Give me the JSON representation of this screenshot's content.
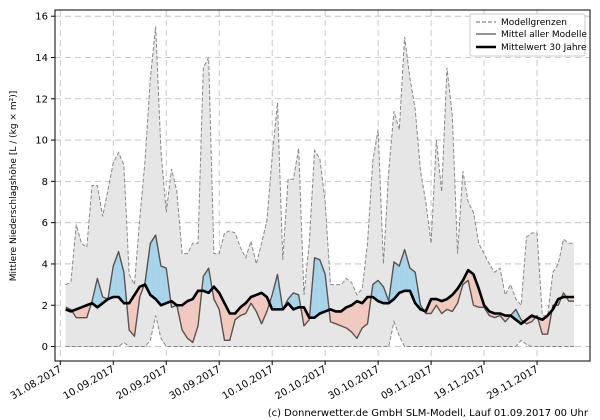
{
  "chart_data": {
    "type": "line",
    "x_start": "2017-09-01",
    "x_end": "2017-12-09",
    "xlim": [
      "2017-08-30",
      "2017-12-09"
    ],
    "ylim": [
      -0.7,
      16.3
    ],
    "ylabel": "Mittlere Niederschlagshöhe",
    "ylabel_unit": "[L / (kg × m²)]",
    "yticks": [
      "0",
      "2",
      "4",
      "6",
      "8",
      "10",
      "12",
      "14",
      "16"
    ],
    "xticks": [
      "31.08.2017",
      "10.09.2017",
      "20.09.2017",
      "30.09.2017",
      "10.10.2017",
      "20.10.2017",
      "30.10.2017",
      "09.11.2017",
      "19.11.2017",
      "29.11.2017"
    ],
    "grid": true,
    "legend": {
      "position": "top-right",
      "entries": [
        "Modellgrenzen",
        "Mittel aller Modelle",
        "Mittelwert 30 Jahre"
      ]
    },
    "series": [
      {
        "name": "Modellgrenzen",
        "style": "upper",
        "values": [
          3.0,
          3.1,
          5.9,
          5.0,
          4.8,
          7.8,
          7.8,
          6.3,
          7.6,
          8.9,
          9.4,
          8.8,
          3.5,
          3.0,
          6.2,
          9.0,
          13.0,
          15.5,
          9.5,
          6.5,
          8.6,
          7.5,
          4.5,
          4.5,
          5.0,
          5.0,
          13.5,
          14.0,
          4.5,
          4.5,
          5.5,
          5.6,
          5.5,
          4.8,
          4.3,
          5.1,
          4.0,
          5.0,
          6.1,
          9.2,
          11.8,
          4.2,
          8.1,
          8.1,
          9.6,
          2.5,
          5.0,
          9.5,
          9.1,
          7.0,
          3.0,
          3.0,
          3.0,
          3.3,
          3.1,
          2.5,
          2.8,
          5.0,
          9.0,
          10.5,
          4.0,
          8.5,
          11.4,
          10.5,
          15.0,
          13.0,
          11.5,
          8.5,
          7.0,
          5.0,
          10.0,
          7.5,
          13.5,
          11.2,
          4.5,
          8.5,
          7.0,
          6.5,
          5.0,
          4.5,
          4.0,
          3.6,
          3.8,
          2.5,
          3.0,
          2.3,
          2.0,
          5.3,
          5.5,
          5.5,
          1.5,
          1.5,
          3.6,
          4.0,
          5.2,
          5.0,
          5.0
        ],
        "color": "#888888"
      },
      {
        "name": "Modellgrenzen",
        "style": "lower",
        "values": [
          0.0,
          0.0,
          0.0,
          0.0,
          0.0,
          0.0,
          0.0,
          0.0,
          0.0,
          0.0,
          0.0,
          0.2,
          0.0,
          0.0,
          0.0,
          0.0,
          0.3,
          1.5,
          0.4,
          0.0,
          0.0,
          0.0,
          0.0,
          0.0,
          0.0,
          0.0,
          0.0,
          0.0,
          0.0,
          0.0,
          0.0,
          0.0,
          0.0,
          0.0,
          0.0,
          0.0,
          0.0,
          0.0,
          0.0,
          0.0,
          0.0,
          0.0,
          0.0,
          0.0,
          0.0,
          0.0,
          0.0,
          0.0,
          0.0,
          0.0,
          0.0,
          0.0,
          0.0,
          0.0,
          0.0,
          0.0,
          0.0,
          0.0,
          0.0,
          0.0,
          0.0,
          0.0,
          1.2,
          0.5,
          0.0,
          0.0,
          0.0,
          0.0,
          0.0,
          0.0,
          0.0,
          0.0,
          0.0,
          0.0,
          0.0,
          0.0,
          0.0,
          0.0,
          0.0,
          0.0,
          0.0,
          0.0,
          0.0,
          0.0,
          0.0,
          0.0,
          0.3,
          0.1,
          0.0,
          0.0,
          0.0,
          0.0,
          0.0,
          0.0,
          0.0,
          0.0,
          0.0
        ],
        "color": "#888888"
      },
      {
        "name": "Mittel aller Modelle",
        "values": [
          1.9,
          1.8,
          1.4,
          1.4,
          1.4,
          2.2,
          3.3,
          2.4,
          2.3,
          3.9,
          4.6,
          3.6,
          0.8,
          0.5,
          2.4,
          3.1,
          5.0,
          5.4,
          3.9,
          3.8,
          1.9,
          2.0,
          0.8,
          0.4,
          0.2,
          1.0,
          3.4,
          3.8,
          2.3,
          1.8,
          0.3,
          0.3,
          1.3,
          1.5,
          1.6,
          2.1,
          1.7,
          1.1,
          1.7,
          2.5,
          3.5,
          1.8,
          2.3,
          2.6,
          2.5,
          1.0,
          1.3,
          4.3,
          4.2,
          3.5,
          1.2,
          1.1,
          1.0,
          0.9,
          0.7,
          0.4,
          0.9,
          1.1,
          3.0,
          3.2,
          2.9,
          2.2,
          4.1,
          3.9,
          4.7,
          3.8,
          3.6,
          2.0,
          1.6,
          1.6,
          2.0,
          1.6,
          1.8,
          1.7,
          2.1,
          3.0,
          3.2,
          2.0,
          1.9,
          1.9,
          1.5,
          1.4,
          1.5,
          1.2,
          1.5,
          1.8,
          1.3,
          1.1,
          1.2,
          1.5,
          0.6,
          0.6,
          2.0,
          2.0,
          2.6,
          2.2,
          2.2
        ],
        "color": "#555555"
      },
      {
        "name": "Mittelwert 30 Jahre",
        "values": [
          1.8,
          1.7,
          1.8,
          1.9,
          2.0,
          2.1,
          1.9,
          2.1,
          2.3,
          2.4,
          2.4,
          2.1,
          2.1,
          2.5,
          2.9,
          3.0,
          2.5,
          2.3,
          2.0,
          2.1,
          2.2,
          2.0,
          2.0,
          2.2,
          2.3,
          2.7,
          2.7,
          2.6,
          2.9,
          2.6,
          2.1,
          1.6,
          1.6,
          1.9,
          2.1,
          2.4,
          2.5,
          2.6,
          2.4,
          1.8,
          1.8,
          1.8,
          2.1,
          1.8,
          1.9,
          1.9,
          1.4,
          1.4,
          1.6,
          1.7,
          1.8,
          1.7,
          1.7,
          1.9,
          2.0,
          2.2,
          2.1,
          2.4,
          2.4,
          2.2,
          2.1,
          2.1,
          2.3,
          2.6,
          2.7,
          2.7,
          2.1,
          1.8,
          1.7,
          2.3,
          2.3,
          2.2,
          2.3,
          2.5,
          2.8,
          3.2,
          3.7,
          3.5,
          2.8,
          2.0,
          1.7,
          1.6,
          1.6,
          1.5,
          1.5,
          1.3,
          1.1,
          1.3,
          1.5,
          1.4,
          1.3,
          1.5,
          1.8,
          2.3,
          2.4,
          2.4,
          2.4
        ],
        "color": "#000000"
      }
    ],
    "colors": {
      "range_fill": "#e6e6e6",
      "range_line": "#888888",
      "above_fill": "#a8d4ea",
      "below_fill": "#f2c9bf",
      "grid": "#bbbbbb",
      "mean_line": "#555555",
      "clim_line": "#000000"
    }
  },
  "footer": {
    "credit": "(c) Donnerwetter.de GmbH SLM-Modell, Lauf 01.09.2017 00 Uhr"
  }
}
